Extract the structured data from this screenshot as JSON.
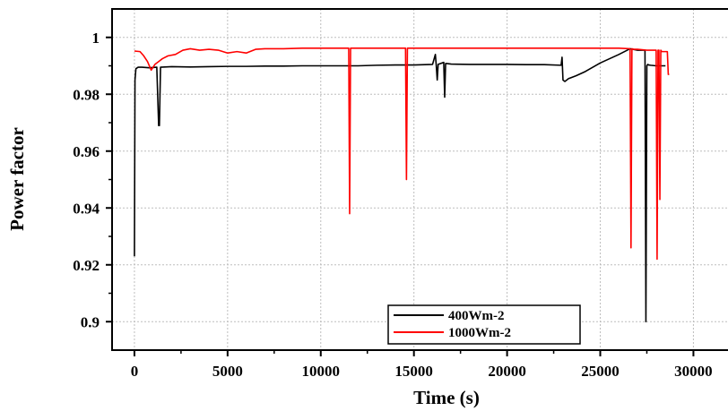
{
  "chart_data": {
    "type": "line",
    "title": "",
    "xlabel": "Time (s)",
    "ylabel": "Power factor",
    "xlim": [
      -1200,
      32000
    ],
    "ylim": [
      0.89,
      1.01
    ],
    "x_ticks": [
      0,
      5000,
      10000,
      15000,
      20000,
      25000,
      30000
    ],
    "x_tick_labels": [
      "0",
      "5000",
      "10000",
      "15000",
      "20000",
      "25000",
      "30000"
    ],
    "y_ticks": [
      0.9,
      0.92,
      0.94,
      0.96,
      0.98,
      1.0
    ],
    "y_tick_labels": [
      "0.9",
      "0.92",
      "0.94",
      "0.96",
      "0.98",
      "1"
    ],
    "grid": true,
    "legend_position": "bottom-center",
    "series": [
      {
        "name": "400Wm-2",
        "color": "#000000",
        "x": [
          0,
          30,
          80,
          200,
          400,
          800,
          1200,
          1300,
          1340,
          1400,
          2000,
          3000,
          4000,
          5000,
          6000,
          7000,
          8000,
          9000,
          10000,
          11000,
          12000,
          13000,
          14000,
          15000,
          16000,
          16150,
          16200,
          16250,
          16300,
          16600,
          16650,
          16700,
          16750,
          17000,
          18000,
          19000,
          20000,
          21000,
          22000,
          22900,
          22950,
          23000,
          23100,
          23300,
          23700,
          24200,
          25000,
          26000,
          26600,
          27000,
          27400,
          27450,
          27500,
          27550,
          27600,
          27700,
          28000,
          28500
        ],
        "y": [
          0.923,
          0.985,
          0.989,
          0.9895,
          0.9895,
          0.9893,
          0.9895,
          0.969,
          0.969,
          0.9895,
          0.9897,
          0.9896,
          0.9897,
          0.9898,
          0.9898,
          0.9899,
          0.9899,
          0.99,
          0.99,
          0.99,
          0.99,
          0.9902,
          0.9903,
          0.9903,
          0.9905,
          0.994,
          0.99,
          0.985,
          0.9905,
          0.9912,
          0.979,
          0.9908,
          0.9908,
          0.9906,
          0.9905,
          0.9905,
          0.9905,
          0.9904,
          0.9904,
          0.9902,
          0.993,
          0.985,
          0.9845,
          0.9855,
          0.9865,
          0.988,
          0.991,
          0.994,
          0.996,
          0.9955,
          0.9955,
          0.9,
          0.99,
          0.9905,
          0.9903,
          0.9902,
          0.99,
          0.99
        ]
      },
      {
        "name": "1000Wm-2",
        "color": "#ff0000",
        "x": [
          0,
          300,
          500,
          700,
          900,
          1100,
          1300,
          1500,
          1800,
          2200,
          2600,
          3000,
          3500,
          4000,
          4500,
          5000,
          5500,
          6000,
          6500,
          7000,
          8000,
          9000,
          10000,
          11000,
          11500,
          11550,
          11600,
          11700,
          12000,
          13000,
          14000,
          14550,
          14600,
          14650,
          14800,
          16000,
          18000,
          20000,
          22000,
          24000,
          26000,
          26600,
          26650,
          26700,
          26800,
          27000,
          27500,
          28000,
          28050,
          28100,
          28150,
          28200,
          28250,
          28300,
          28350,
          28400,
          28500,
          28600,
          28650,
          28700
        ],
        "y": [
          0.9952,
          0.995,
          0.9935,
          0.9915,
          0.9885,
          0.9905,
          0.9915,
          0.9925,
          0.9935,
          0.994,
          0.9955,
          0.996,
          0.9955,
          0.9958,
          0.9955,
          0.9945,
          0.995,
          0.9945,
          0.9958,
          0.996,
          0.996,
          0.9962,
          0.9962,
          0.9962,
          0.9962,
          0.938,
          0.9962,
          0.9962,
          0.9962,
          0.9962,
          0.9962,
          0.9962,
          0.95,
          0.9962,
          0.9962,
          0.9962,
          0.9962,
          0.9962,
          0.9962,
          0.9962,
          0.9962,
          0.996,
          0.926,
          0.996,
          0.9958,
          0.9958,
          0.9955,
          0.9955,
          0.922,
          0.9955,
          0.9955,
          0.943,
          0.9955,
          0.995,
          0.995,
          0.995,
          0.995,
          0.995,
          0.987,
          0.987
        ]
      }
    ]
  }
}
